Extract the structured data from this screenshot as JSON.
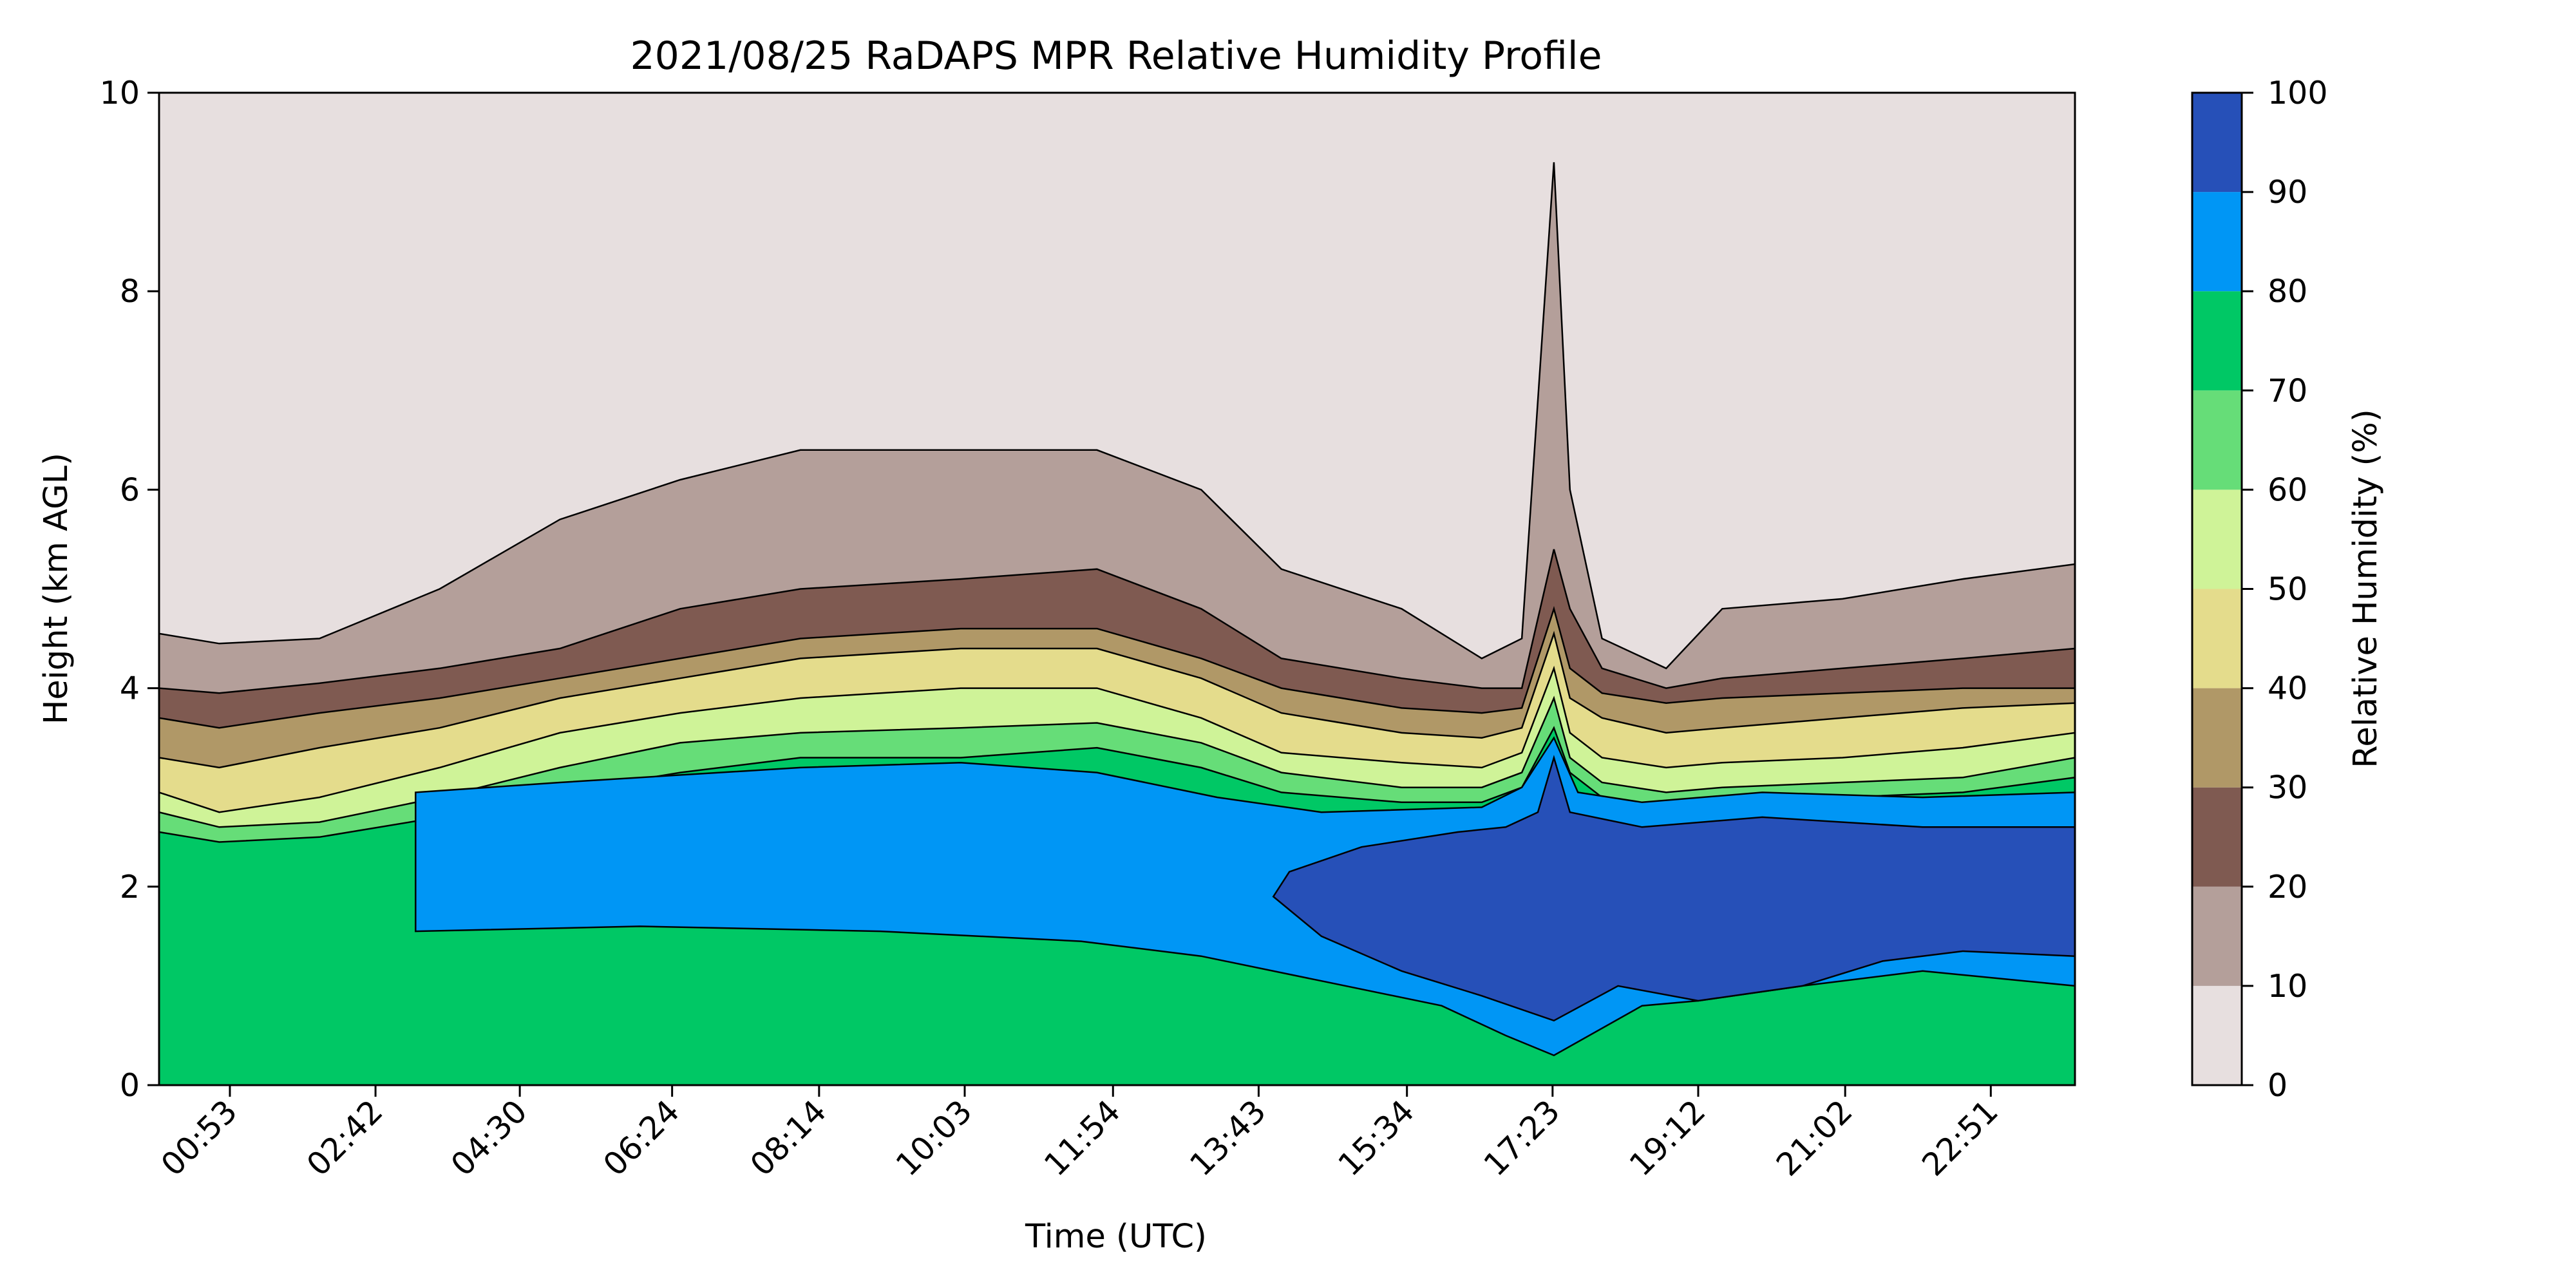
{
  "chart_data": {
    "type": "heatmap",
    "title": "2021/08/25 RaDAPS MPR Relative Humidity Profile",
    "xlabel": "Time (UTC)",
    "ylabel": "Height (km AGL)",
    "x_ticks": [
      "00:53",
      "02:42",
      "04:30",
      "06:24",
      "08:14",
      "10:03",
      "11:54",
      "13:43",
      "15:34",
      "17:23",
      "19:12",
      "21:02",
      "22:51"
    ],
    "x_range_hours": [
      0.0,
      23.9
    ],
    "y_ticks": [
      "0",
      "2",
      "4",
      "6",
      "8",
      "10"
    ],
    "ylim": [
      0,
      10
    ],
    "colorbar": {
      "label": "Relative Humidity (%)",
      "ticks": [
        "0",
        "10",
        "20",
        "30",
        "40",
        "50",
        "60",
        "70",
        "80",
        "90",
        "100"
      ],
      "levels": [
        0,
        10,
        20,
        30,
        40,
        50,
        60,
        70,
        80,
        90,
        100
      ],
      "colors": [
        "#e7dfdf",
        "#b49f9a",
        "#7f5a51",
        "#b09867",
        "#e4dc8c",
        "#cff398",
        "#66dd78",
        "#00c865",
        "#0096f5",
        "#2650b8"
      ]
    },
    "contour_boundaries_km": {
      "hours": [
        0.0,
        0.75,
        2.0,
        3.5,
        5.0,
        6.5,
        8.0,
        10.0,
        11.7,
        13.0,
        14.0,
        15.5,
        16.5,
        17.0,
        17.4,
        17.6,
        18.0,
        18.8,
        19.5,
        21.0,
        22.5,
        23.9
      ],
      "rh_10": [
        4.55,
        4.45,
        4.5,
        5.0,
        5.7,
        6.1,
        6.4,
        6.4,
        6.4,
        6.0,
        5.2,
        4.8,
        4.3,
        4.5,
        9.3,
        6.0,
        4.5,
        4.2,
        4.8,
        4.9,
        5.1,
        5.25
      ],
      "rh_20": [
        4.0,
        3.95,
        4.05,
        4.2,
        4.4,
        4.8,
        5.0,
        5.1,
        5.2,
        4.8,
        4.3,
        4.1,
        4.0,
        4.0,
        5.4,
        4.8,
        4.2,
        4.0,
        4.1,
        4.2,
        4.3,
        4.4
      ],
      "rh_30": [
        3.7,
        3.6,
        3.75,
        3.9,
        4.1,
        4.3,
        4.5,
        4.6,
        4.6,
        4.3,
        4.0,
        3.8,
        3.75,
        3.8,
        4.8,
        4.2,
        3.95,
        3.85,
        3.9,
        3.95,
        4.0,
        4.0
      ],
      "rh_40": [
        3.3,
        3.2,
        3.4,
        3.6,
        3.9,
        4.1,
        4.3,
        4.4,
        4.4,
        4.1,
        3.75,
        3.55,
        3.5,
        3.6,
        4.55,
        3.9,
        3.7,
        3.55,
        3.6,
        3.7,
        3.8,
        3.85
      ],
      "rh_50": [
        2.95,
        2.75,
        2.9,
        3.2,
        3.55,
        3.75,
        3.9,
        4.0,
        4.0,
        3.7,
        3.35,
        3.25,
        3.2,
        3.35,
        4.2,
        3.55,
        3.3,
        3.2,
        3.25,
        3.3,
        3.4,
        3.55
      ],
      "rh_60": [
        2.75,
        2.6,
        2.65,
        2.9,
        3.2,
        3.45,
        3.55,
        3.6,
        3.65,
        3.45,
        3.15,
        3.0,
        3.0,
        3.15,
        3.9,
        3.3,
        3.05,
        2.95,
        3.0,
        3.05,
        3.1,
        3.3
      ],
      "rh_70": [
        2.55,
        2.45,
        2.5,
        2.7,
        2.95,
        3.15,
        3.3,
        3.3,
        3.4,
        3.2,
        2.95,
        2.85,
        2.85,
        3.0,
        3.6,
        3.15,
        2.9,
        2.8,
        2.85,
        2.9,
        2.95,
        3.1
      ],
      "rh_80_top": [
        2.55,
        2.45,
        2.5,
        2.7,
        2.85,
        2.95,
        3.0,
        3.1,
        3.1,
        2.9,
        2.8,
        2.7,
        2.7,
        2.85,
        3.4,
        3.0,
        2.75,
        2.7,
        2.75,
        2.8,
        2.85,
        2.95
      ]
    }
  }
}
